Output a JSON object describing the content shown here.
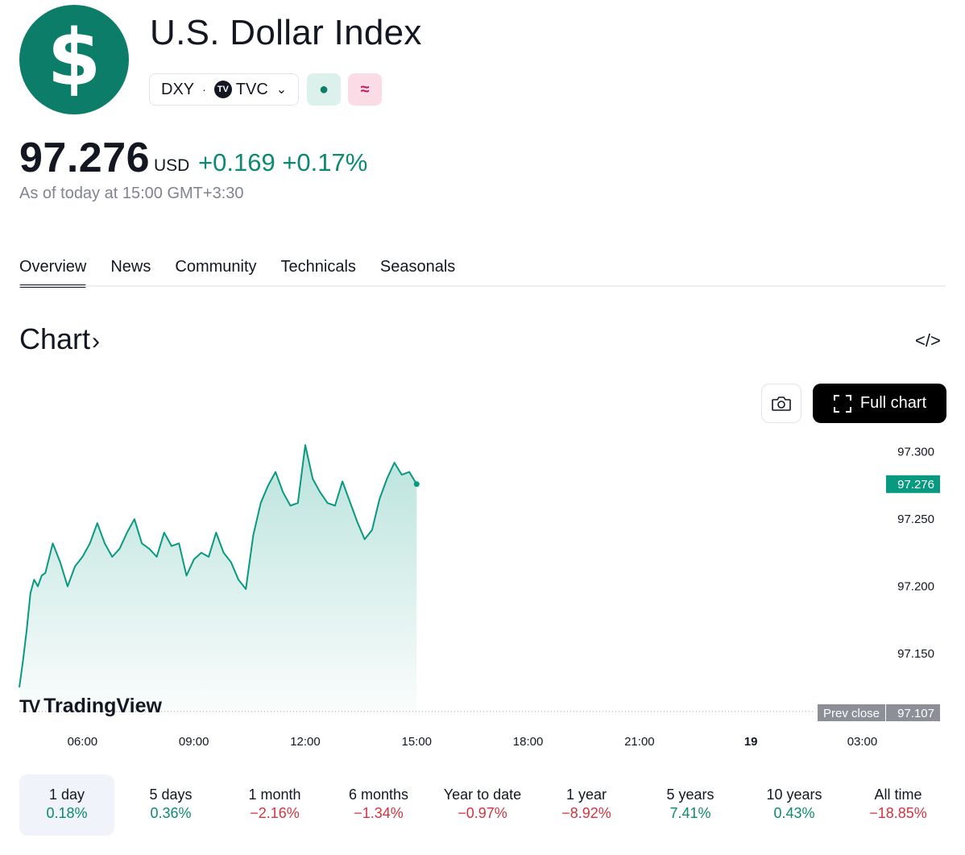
{
  "header": {
    "logo_symbol": "$",
    "title": "U.S. Dollar Index",
    "ticker": "DXY",
    "separator": "·",
    "exchange_badge": "TV",
    "exchange": "TVC",
    "chevron": "⌄",
    "market_status_symbol": "●",
    "delay_symbol": "≈"
  },
  "quote": {
    "price": "97.276",
    "currency": "USD",
    "change": "+0.169",
    "change_pct": "+0.17%",
    "as_of": "As of today at 15:00 GMT+3:30"
  },
  "tabs": [
    "Overview",
    "News",
    "Community",
    "Technicals",
    "Seasonals"
  ],
  "chart_section": {
    "heading": "Chart",
    "heading_arrow": "›",
    "embed_icon_text": "</>",
    "full_chart_label": "Full chart",
    "tradingview_mark": "TV",
    "tradingview_label": "TradingView"
  },
  "chart_data": {
    "type": "area",
    "x_tick_labels": [
      "06:00",
      "09:00",
      "12:00",
      "15:00",
      "18:00",
      "21:00",
      "19",
      "03:00"
    ],
    "y_tick_labels": [
      "97.300",
      "97.250",
      "97.200",
      "97.150"
    ],
    "ylim": [
      97.107,
      97.31
    ],
    "last_price_label": "97.276",
    "prev_close_label": "Prev close",
    "prev_close_value": "97.107",
    "series": [
      {
        "x_hours": [
          4.3,
          4.4,
          4.5,
          4.6,
          4.7,
          4.8,
          4.9,
          5.0,
          5.2,
          5.4,
          5.6,
          5.8,
          6.0,
          6.2,
          6.4,
          6.6,
          6.8,
          7.0,
          7.2,
          7.4,
          7.6,
          7.8,
          8.0,
          8.2,
          8.4,
          8.6,
          8.8,
          9.0,
          9.2,
          9.4,
          9.6,
          9.8,
          10.0,
          10.2,
          10.4,
          10.6,
          10.8,
          11.0,
          11.2,
          11.4,
          11.6,
          11.8,
          12.0,
          12.2,
          12.4,
          12.6,
          12.8,
          13.0,
          13.2,
          13.4,
          13.6,
          13.8,
          14.0,
          14.2,
          14.4,
          14.6,
          14.8,
          15.0
        ],
        "values": [
          97.125,
          97.145,
          97.168,
          97.195,
          97.205,
          97.2,
          97.208,
          97.21,
          97.232,
          97.218,
          97.2,
          97.215,
          97.222,
          97.232,
          97.247,
          97.232,
          97.222,
          97.228,
          97.24,
          97.25,
          97.232,
          97.228,
          97.222,
          97.24,
          97.23,
          97.232,
          97.208,
          97.22,
          97.225,
          97.222,
          97.24,
          97.225,
          97.218,
          97.205,
          97.198,
          97.238,
          97.262,
          97.275,
          97.285,
          97.27,
          97.26,
          97.262,
          97.305,
          97.28,
          97.27,
          97.262,
          97.26,
          97.278,
          97.263,
          97.248,
          97.235,
          97.242,
          97.265,
          97.28,
          97.292,
          97.283,
          97.285,
          97.276
        ]
      }
    ]
  },
  "periods": [
    {
      "label": "1 day",
      "pct": "0.18%",
      "dir": "up"
    },
    {
      "label": "5 days",
      "pct": "0.36%",
      "dir": "up"
    },
    {
      "label": "1 month",
      "pct": "−2.16%",
      "dir": "down"
    },
    {
      "label": "6 months",
      "pct": "−1.34%",
      "dir": "down"
    },
    {
      "label": "Year to date",
      "pct": "−0.97%",
      "dir": "down"
    },
    {
      "label": "1 year",
      "pct": "−8.92%",
      "dir": "down"
    },
    {
      "label": "5 years",
      "pct": "7.41%",
      "dir": "up"
    },
    {
      "label": "10 years",
      "pct": "0.43%",
      "dir": "up"
    },
    {
      "label": "All time",
      "pct": "−18.85%",
      "dir": "down"
    }
  ],
  "colors": {
    "brand_green": "#0b7d68",
    "up": "#0b8a71",
    "down": "#d5333e",
    "line": "#089981"
  }
}
